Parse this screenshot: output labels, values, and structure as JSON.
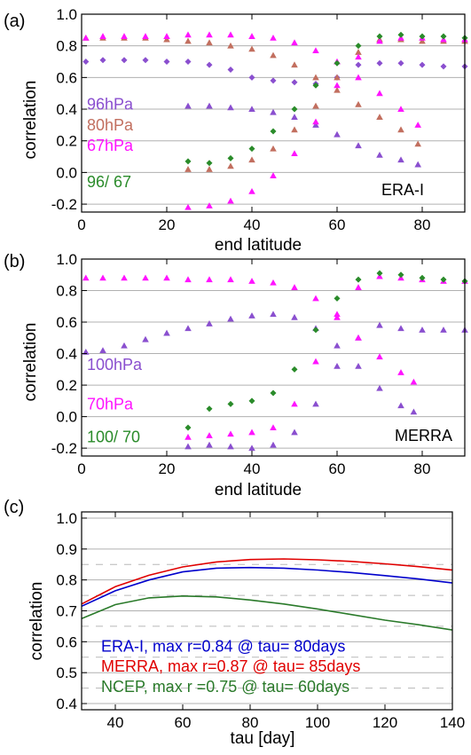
{
  "colors": {
    "purple": "#8a4fcf",
    "brown": "#c26f5f",
    "magenta": "#ff14ff",
    "green": "#2a8b2a",
    "blue": "#0000cc",
    "red": "#e00000",
    "dkgreen": "#2a7a2a"
  },
  "chart_data": [
    {
      "type": "scatter",
      "panel_label": "(a)",
      "dataset_label": "ERA-I",
      "xlabel": "end latitude",
      "ylabel": "correlation",
      "xlim": [
        0,
        90
      ],
      "ylim": [
        -0.25,
        1.0
      ],
      "xticks": [
        "0",
        "20",
        "40",
        "60",
        "80"
      ],
      "yticks": [
        "-0.2",
        "0.0",
        "0.2",
        "0.4",
        "0.6",
        "0.8",
        "1.0"
      ],
      "grid": "horizontal",
      "legend_placement": "left",
      "series": [
        {
          "name": "96hPa",
          "color": "purple",
          "marker": "diamond",
          "segments": [
            {
              "x": [
                1,
                5,
                10,
                15,
                20,
                25,
                30,
                35,
                40,
                45,
                50,
                55,
                60,
                65,
                70,
                75,
                80,
                85,
                90
              ],
              "y": [
                0.7,
                0.71,
                0.71,
                0.71,
                0.7,
                0.7,
                0.68,
                0.65,
                0.6,
                0.58,
                0.57,
                0.56,
                0.6,
                0.68,
                0.69,
                0.69,
                0.68,
                0.67,
                0.67
              ]
            }
          ]
        },
        {
          "name": "96hPa",
          "color": "purple",
          "marker": "triangle",
          "segments": [
            {
              "x": [
                25,
                30,
                35,
                40,
                45,
                50,
                55,
                60,
                65,
                70,
                75,
                79
              ],
              "y": [
                0.42,
                0.42,
                0.41,
                0.4,
                0.38,
                0.35,
                0.3,
                0.24,
                0.17,
                0.11,
                0.08,
                0.05
              ]
            }
          ]
        },
        {
          "name": "80hPa",
          "color": "brown",
          "marker": "triangle",
          "segments": [
            {
              "x": [
                1,
                5,
                10,
                15,
                20,
                25,
                30,
                35,
                40,
                45,
                50,
                55,
                60,
                65,
                70,
                75,
                79
              ],
              "y": [
                0.85,
                0.85,
                0.85,
                0.85,
                0.84,
                0.83,
                0.82,
                0.8,
                0.78,
                0.74,
                0.68,
                0.6,
                0.52,
                0.43,
                0.35,
                0.27,
                0.18
              ]
            },
            {
              "x": [
                25,
                30,
                35,
                40,
                45,
                50,
                55,
                60,
                65,
                70,
                75,
                80,
                85,
                90
              ],
              "y": [
                0.02,
                0.02,
                0.04,
                0.08,
                0.15,
                0.27,
                0.42,
                0.6,
                0.76,
                0.84,
                0.84,
                0.83,
                0.83,
                0.83
              ]
            }
          ]
        },
        {
          "name": "67hPa",
          "color": "magenta",
          "marker": "triangle",
          "segments": [
            {
              "x": [
                1,
                5,
                10,
                15,
                20,
                25,
                30,
                35,
                40,
                45,
                50,
                55,
                60,
                65,
                70,
                75,
                79
              ],
              "y": [
                0.85,
                0.86,
                0.86,
                0.86,
                0.86,
                0.87,
                0.87,
                0.87,
                0.86,
                0.85,
                0.82,
                0.77,
                0.7,
                0.6,
                0.5,
                0.4,
                0.3
              ]
            },
            {
              "x": [
                25,
                30,
                35,
                40,
                45,
                50,
                55,
                60,
                65,
                70,
                75,
                80,
                85,
                90
              ],
              "y": [
                -0.22,
                -0.21,
                -0.18,
                -0.12,
                -0.02,
                0.12,
                0.32,
                0.55,
                0.73,
                0.83,
                0.85,
                0.85,
                0.84,
                0.84
              ]
            }
          ]
        },
        {
          "name": "96/ 67",
          "color": "green",
          "marker": "diamond",
          "segments": [
            {
              "x": [
                25,
                30,
                35,
                40,
                45,
                50,
                55,
                60,
                65,
                70,
                75,
                80,
                85,
                90
              ],
              "y": [
                0.07,
                0.06,
                0.09,
                0.15,
                0.26,
                0.4,
                0.55,
                0.69,
                0.8,
                0.86,
                0.87,
                0.86,
                0.86,
                0.85
              ]
            }
          ]
        }
      ],
      "legend": [
        {
          "text": "96hPa",
          "color": "purple",
          "y": 0.43
        },
        {
          "text": "80hPa",
          "color": "brown",
          "y": 0.3
        },
        {
          "text": "67hPa",
          "color": "magenta",
          "y": 0.17
        },
        {
          "text": "96/ 67",
          "color": "green",
          "y": -0.06
        }
      ]
    },
    {
      "type": "scatter",
      "panel_label": "(b)",
      "dataset_label": "MERRA",
      "xlabel": "end latitude",
      "ylabel": "correlation",
      "xlim": [
        0,
        90
      ],
      "ylim": [
        -0.25,
        1.0
      ],
      "xticks": [
        "0",
        "20",
        "40",
        "60",
        "80"
      ],
      "yticks": [
        "-0.2",
        "0.0",
        "0.2",
        "0.4",
        "0.6",
        "0.8",
        "1.0"
      ],
      "grid": "horizontal",
      "legend_placement": "left",
      "series": [
        {
          "name": "100hPa",
          "color": "purple",
          "marker": "triangle",
          "segments": [
            {
              "x": [
                1,
                5,
                10,
                15,
                20,
                25,
                30,
                35,
                40,
                45,
                50,
                55,
                60,
                65,
                70,
                75,
                78
              ],
              "y": [
                0.41,
                0.42,
                0.45,
                0.49,
                0.53,
                0.56,
                0.59,
                0.62,
                0.64,
                0.65,
                0.63,
                0.56,
                0.45,
                0.32,
                0.18,
                0.07,
                0.03
              ]
            },
            {
              "x": [
                25,
                30,
                35,
                40,
                45,
                50,
                55,
                60,
                65,
                70,
                75,
                80,
                85,
                90
              ],
              "y": [
                -0.19,
                -0.18,
                -0.19,
                -0.2,
                -0.18,
                -0.1,
                0.08,
                0.32,
                0.5,
                0.58,
                0.56,
                0.55,
                0.55,
                0.55
              ]
            }
          ]
        },
        {
          "name": "70hPa",
          "color": "magenta",
          "marker": "triangle",
          "segments": [
            {
              "x": [
                1,
                5,
                10,
                15,
                20,
                25,
                30,
                35,
                40,
                45,
                50,
                55,
                60,
                65,
                70,
                75,
                78
              ],
              "y": [
                0.88,
                0.88,
                0.88,
                0.88,
                0.88,
                0.87,
                0.87,
                0.87,
                0.86,
                0.85,
                0.82,
                0.75,
                0.63,
                0.5,
                0.38,
                0.28,
                0.22
              ]
            },
            {
              "x": [
                25,
                30,
                35,
                40,
                45,
                50,
                55,
                60,
                65,
                70,
                75,
                80,
                85,
                90
              ],
              "y": [
                -0.13,
                -0.12,
                -0.11,
                -0.1,
                -0.07,
                0.08,
                0.35,
                0.65,
                0.82,
                0.89,
                0.88,
                0.87,
                0.86,
                0.86
              ]
            }
          ]
        },
        {
          "name": "100/ 70",
          "color": "green",
          "marker": "diamond",
          "segments": [
            {
              "x": [
                25,
                30,
                35,
                40,
                45,
                50,
                55,
                60,
                65,
                70,
                75,
                80,
                85,
                90
              ],
              "y": [
                -0.07,
                0.05,
                0.08,
                0.1,
                0.15,
                0.3,
                0.55,
                0.75,
                0.87,
                0.91,
                0.9,
                0.88,
                0.87,
                0.86
              ]
            }
          ]
        }
      ],
      "legend": [
        {
          "text": "100hPa",
          "color": "purple",
          "y": 0.33
        },
        {
          "text": "70hPa",
          "color": "magenta",
          "y": 0.08
        },
        {
          "text": "100/ 70",
          "color": "green",
          "y": -0.13
        }
      ]
    },
    {
      "type": "line",
      "panel_label": "(c)",
      "xlabel": "tau [day]",
      "ylabel": "correlation",
      "xlim": [
        30,
        140
      ],
      "ylim": [
        0.38,
        1.02
      ],
      "xticks": [
        "40",
        "60",
        "80",
        "100",
        "120",
        "140"
      ],
      "yticks": [
        "0.4",
        "0.5",
        "0.6",
        "0.7",
        "0.8",
        "0.9",
        "1.0"
      ],
      "grid": "horizontal solid with dashed midlines",
      "legend_placement": "lower-left",
      "series": [
        {
          "name": "ERA-I",
          "color": "blue",
          "x": [
            30,
            40,
            50,
            60,
            70,
            80,
            90,
            100,
            110,
            120,
            130,
            140
          ],
          "y": [
            0.715,
            0.765,
            0.8,
            0.826,
            0.838,
            0.84,
            0.838,
            0.832,
            0.824,
            0.814,
            0.803,
            0.79
          ]
        },
        {
          "name": "MERRA",
          "color": "red",
          "x": [
            30,
            40,
            50,
            60,
            70,
            80,
            90,
            100,
            110,
            120,
            130,
            140
          ],
          "y": [
            0.722,
            0.778,
            0.815,
            0.842,
            0.858,
            0.866,
            0.868,
            0.865,
            0.86,
            0.852,
            0.843,
            0.832
          ]
        },
        {
          "name": "NCEP",
          "color": "dkgreen",
          "x": [
            30,
            40,
            50,
            60,
            70,
            80,
            90,
            100,
            110,
            120,
            130,
            140
          ],
          "y": [
            0.675,
            0.72,
            0.742,
            0.748,
            0.745,
            0.735,
            0.722,
            0.706,
            0.688,
            0.67,
            0.655,
            0.638
          ]
        }
      ],
      "legend": [
        {
          "text": "ERA-I, max r=0.84 @ tau= 80days",
          "color": "blue",
          "y": 0.585
        },
        {
          "text": "MERRA, max r=0.87 @ tau= 85days",
          "color": "red",
          "y": 0.52
        },
        {
          "text": "NCEP, max r =0.75 @ tau= 60days",
          "color": "dkgreen",
          "y": 0.455
        }
      ]
    }
  ]
}
